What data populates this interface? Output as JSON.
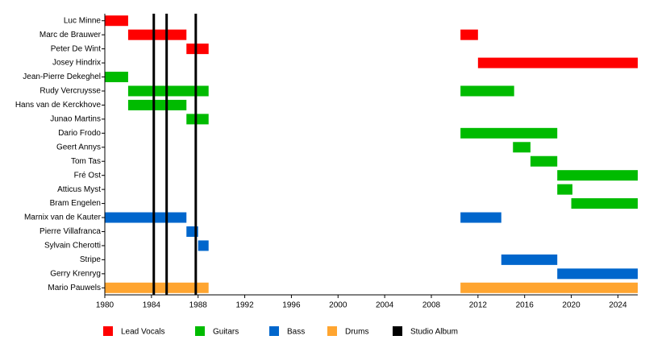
{
  "chart_data": {
    "type": "timeline",
    "categories": [
      "Luc Minne",
      "Marc de Brauwer",
      "Peter De Wint",
      "Josey Hindrix",
      "Jean-Pierre Dekeghel",
      "Rudy Vercruysse",
      "Hans van de Kerckhove",
      "Junao Martins",
      "Dario Frodo",
      "Geert Annys",
      "Tom Tas",
      "Fré Ost",
      "Atticus Myst",
      "Bram Engelen",
      "Marnix van de Kauter",
      "Pierre Villafranca",
      "Sylvain Cherotti",
      "Stripe",
      "Gerry Krenryg",
      "Mario Pauwels"
    ],
    "series": [
      {
        "name": "Lead Vocals",
        "color": "#ff0000",
        "values": [
          [
            [
              1980,
              1982
            ]
          ],
          [
            [
              1982,
              1987
            ],
            [
              2010.5,
              2012
            ]
          ],
          [
            [
              1987,
              1988.9
            ]
          ],
          [
            [
              2012,
              2025.7
            ]
          ],
          null,
          null,
          null,
          null,
          null,
          null,
          null,
          null,
          null,
          null,
          null,
          null,
          null,
          null,
          null,
          null
        ]
      },
      {
        "name": "Guitars",
        "color": "#00bb00",
        "values": [
          null,
          null,
          null,
          null,
          [
            [
              1980,
              1982
            ]
          ],
          [
            [
              1982,
              1988.9
            ],
            [
              2010.5,
              2015.1
            ]
          ],
          [
            [
              1982,
              1987
            ]
          ],
          [
            [
              1987,
              1988.9
            ]
          ],
          [
            [
              2010.5,
              2018.8
            ]
          ],
          [
            [
              2015,
              2016.5
            ]
          ],
          [
            [
              2016.5,
              2018.8
            ]
          ],
          [
            [
              2018.8,
              2025.7
            ]
          ],
          [
            [
              2018.8,
              2020.1
            ]
          ],
          [
            [
              2020,
              2025.7
            ]
          ],
          null,
          null,
          null,
          null,
          null,
          null
        ]
      },
      {
        "name": "Bass",
        "color": "#0066cc",
        "values": [
          null,
          null,
          null,
          null,
          null,
          null,
          null,
          null,
          null,
          null,
          null,
          null,
          null,
          null,
          [
            [
              1980,
              1987
            ],
            [
              2010.5,
              2014
            ]
          ],
          [
            [
              1987,
              1988
            ]
          ],
          [
            [
              1988,
              1988.9
            ]
          ],
          [
            [
              2014,
              2018.8
            ]
          ],
          [
            [
              2018.8,
              2025.7
            ]
          ],
          null
        ]
      },
      {
        "name": "Drums",
        "color": "#ffa530",
        "values": [
          null,
          null,
          null,
          null,
          null,
          null,
          null,
          null,
          null,
          null,
          null,
          null,
          null,
          null,
          null,
          null,
          null,
          null,
          null,
          [
            [
              1980,
              1988.9
            ],
            [
              2010.5,
              2025.7
            ]
          ]
        ]
      }
    ],
    "albums": {
      "name": "Studio Album",
      "color": "#000000",
      "values": [
        1984.2,
        1985.3,
        1987.8
      ]
    },
    "xlim": [
      1980,
      2025.7
    ],
    "xticks": [
      1980,
      1984,
      1988,
      1992,
      1996,
      2000,
      2004,
      2008,
      2012,
      2016,
      2020,
      2024
    ]
  }
}
